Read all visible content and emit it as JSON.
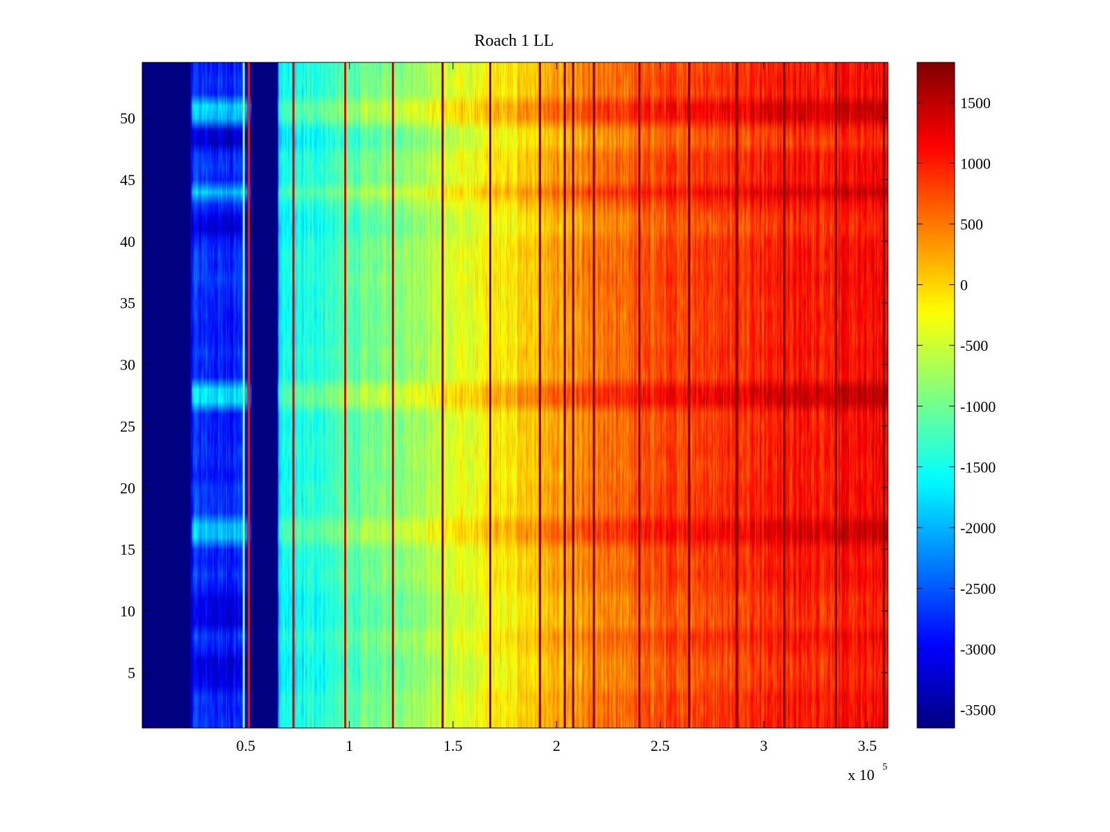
{
  "chart_data": {
    "type": "heatmap",
    "title": "Roach 1 LL",
    "xlabel": "",
    "ylabel": "",
    "x_multiplier": {
      "base": "x 10",
      "exponent": "5"
    },
    "xlim": [
      0,
      360000
    ],
    "ylim": [
      0.5,
      54.5
    ],
    "x_ticks": [
      {
        "value": 50000,
        "label": "0.5"
      },
      {
        "value": 100000,
        "label": "1"
      },
      {
        "value": 150000,
        "label": "1.5"
      },
      {
        "value": 200000,
        "label": "2"
      },
      {
        "value": 250000,
        "label": "2.5"
      },
      {
        "value": 300000,
        "label": "3"
      },
      {
        "value": 350000,
        "label": "3.5"
      }
    ],
    "y_ticks": [
      {
        "value": 5,
        "label": "5"
      },
      {
        "value": 10,
        "label": "10"
      },
      {
        "value": 15,
        "label": "15"
      },
      {
        "value": 20,
        "label": "20"
      },
      {
        "value": 25,
        "label": "25"
      },
      {
        "value": 30,
        "label": "30"
      },
      {
        "value": 35,
        "label": "35"
      },
      {
        "value": 40,
        "label": "40"
      },
      {
        "value": 45,
        "label": "45"
      },
      {
        "value": 50,
        "label": "50"
      }
    ],
    "rows": 54,
    "colorbar": {
      "colormap": "jet",
      "clim": [
        -3650,
        1830
      ],
      "ticks": [
        {
          "value": 1500,
          "label": "1500"
        },
        {
          "value": 1000,
          "label": "1000"
        },
        {
          "value": 500,
          "label": "500"
        },
        {
          "value": 0,
          "label": "0"
        },
        {
          "value": -500,
          "label": "-500"
        },
        {
          "value": -1000,
          "label": "-1000"
        },
        {
          "value": -1500,
          "label": "-1500"
        },
        {
          "value": -2000,
          "label": "-2000"
        },
        {
          "value": -2500,
          "label": "-2500"
        },
        {
          "value": -3000,
          "label": "-3000"
        },
        {
          "value": -3500,
          "label": "-3500"
        }
      ]
    },
    "column_profile": [
      {
        "x": 0,
        "value": -3650
      },
      {
        "x": 23000,
        "value": -3650
      },
      {
        "x": 24000,
        "value": -2700
      },
      {
        "x": 40000,
        "value": -2800
      },
      {
        "x": 48000,
        "value": -2700
      },
      {
        "x": 53000,
        "value": -3650
      },
      {
        "x": 65000,
        "value": -3650
      },
      {
        "x": 66000,
        "value": -1650
      },
      {
        "x": 100000,
        "value": -1150
      },
      {
        "x": 150000,
        "value": -450
      },
      {
        "x": 200000,
        "value": 250
      },
      {
        "x": 250000,
        "value": 750
      },
      {
        "x": 300000,
        "value": 1000
      },
      {
        "x": 360000,
        "value": 1100
      }
    ],
    "bright_rows": [
      16,
      17,
      27,
      28,
      44,
      50,
      51
    ],
    "dark_rows": [
      4,
      5,
      6,
      9,
      10,
      11,
      41,
      42,
      48,
      49
    ],
    "vertical_lines": [
      {
        "x": 49000,
        "value": -900
      },
      {
        "x": 51500,
        "value": 1000
      },
      {
        "x": 73000,
        "value": 1300
      },
      {
        "x": 98000,
        "value": 1300
      },
      {
        "x": 121000,
        "value": 1400
      },
      {
        "x": 145000,
        "value": 1800
      },
      {
        "x": 168000,
        "value": 1800
      },
      {
        "x": 192000,
        "value": 1800
      },
      {
        "x": 204000,
        "value": 1800
      },
      {
        "x": 208000,
        "value": 1800
      },
      {
        "x": 218000,
        "value": 1830
      },
      {
        "x": 240000,
        "value": 1700
      },
      {
        "x": 264000,
        "value": 1830
      },
      {
        "x": 287000,
        "value": 1830
      },
      {
        "x": 310000,
        "value": 1800
      },
      {
        "x": 335000,
        "value": 1800
      },
      {
        "x": 358000,
        "value": 1830
      }
    ]
  }
}
